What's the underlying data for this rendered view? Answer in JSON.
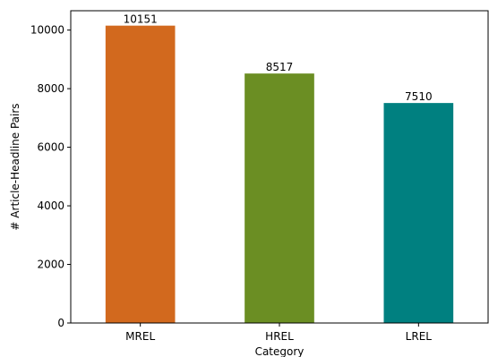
{
  "chart_data": {
    "type": "bar",
    "categories": [
      "MREL",
      "HREL",
      "LREL"
    ],
    "values": [
      10151,
      8517,
      7510
    ],
    "colors": [
      "#d2691e",
      "#6b8e23",
      "#008080"
    ],
    "xlabel": "Category",
    "ylabel": "# Article-Headline Pairs",
    "ylim": [
      0,
      10660
    ],
    "yticks": [
      0,
      2000,
      4000,
      6000,
      8000,
      10000
    ],
    "grid": false,
    "data_labels": true
  }
}
